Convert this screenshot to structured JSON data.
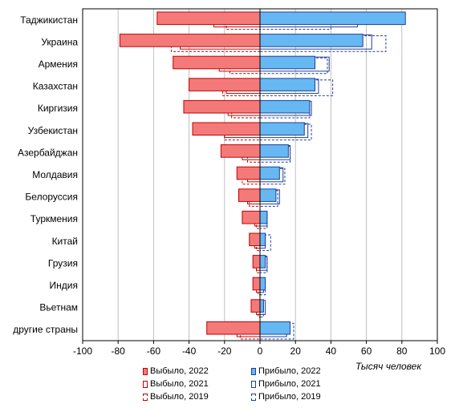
{
  "chart_data": {
    "type": "bar",
    "orientation": "horizontal",
    "title": "",
    "xlabel": "Тысяч человек",
    "ylabel": "",
    "xlim": [
      -100,
      100
    ],
    "xticks": [
      -100,
      -80,
      -60,
      -40,
      -20,
      0,
      20,
      40,
      60,
      80,
      100
    ],
    "grid": true,
    "legend_position": "bottom",
    "categories": [
      "Таджикистан",
      "Украина",
      "Армения",
      "Казахстан",
      "Киргизия",
      "Узбекистан",
      "Азербайджан",
      "Молдавия",
      "Белоруссия",
      "Туркмения",
      "Китай",
      "Грузия",
      "Индия",
      "Вьетнам",
      "другие страны"
    ],
    "series": [
      {
        "name": "Выбыло, 2022",
        "style": "solid-fill",
        "color": "#f47a7a",
        "stroke": "#c00000",
        "values": [
          -58,
          -79,
          -49,
          -40,
          -43,
          -38,
          -22,
          -13,
          -12,
          -10,
          -6,
          -4,
          -4,
          -5,
          -30
        ]
      },
      {
        "name": "Выбыло, 2021",
        "style": "solid-outline",
        "color": "#ffffff",
        "stroke": "#c00000",
        "values": [
          -26,
          -45,
          -23,
          -19,
          -18,
          -20,
          -10,
          -7,
          -7,
          -3,
          -3,
          -2,
          -2,
          -2,
          -13
        ]
      },
      {
        "name": "Выбыло, 2019",
        "style": "dashed-outline",
        "color": "#ffffff",
        "stroke": "#c00000",
        "values": [
          -19,
          -50,
          -17,
          -21,
          -16,
          -20,
          -7,
          -10,
          -6,
          -2,
          -2,
          -2,
          -1,
          -1,
          -11
        ]
      },
      {
        "name": "Прибыло, 2022",
        "style": "solid-fill",
        "color": "#66b8f2",
        "stroke": "#1f3f99",
        "values": [
          82,
          58,
          31,
          31,
          28,
          25,
          16,
          11,
          9,
          4,
          3,
          3,
          3,
          2,
          17
        ]
      },
      {
        "name": "Прибыло, 2021",
        "style": "solid-outline",
        "color": "#ffffff",
        "stroke": "#1f3f99",
        "values": [
          55,
          63,
          39,
          33,
          29,
          27,
          17,
          13,
          11,
          4,
          3,
          4,
          2,
          3,
          15
        ]
      },
      {
        "name": "Прибыло, 2019",
        "style": "dashed-outline",
        "color": "#ffffff",
        "stroke": "#1f3f99",
        "values": [
          40,
          71,
          38,
          41,
          28,
          29,
          17,
          14,
          10,
          4,
          6,
          4,
          3,
          2,
          19
        ]
      }
    ]
  }
}
